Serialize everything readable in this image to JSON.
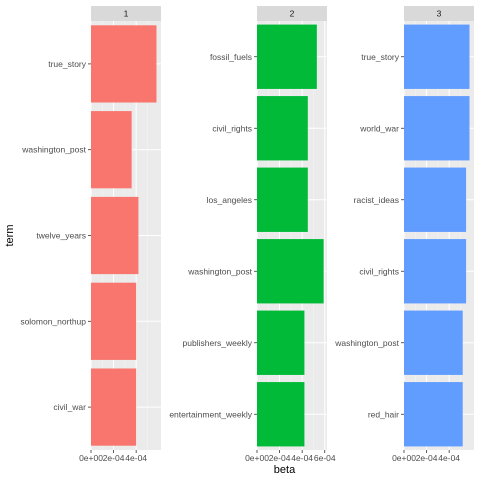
{
  "chart_data": {
    "type": "bar",
    "orientation": "horizontal",
    "xlabel": "beta",
    "ylabel": "term",
    "grid": true,
    "legend": "none",
    "facets": [
      {
        "label": "1",
        "color": "#F8766D",
        "xlim": [
          0,
          0.00062
        ],
        "x_ticks": [
          0,
          0.0002,
          0.0004
        ],
        "x_tick_labels": [
          "0e+00",
          "2e-04",
          "4e-04"
        ],
        "categories": [
          "true_story",
          "washington_post",
          "twelve_years",
          "solomon_northup",
          "civil_war"
        ],
        "values": [
          0.00058,
          0.00036,
          0.00042,
          0.0004,
          0.0004
        ]
      },
      {
        "label": "2",
        "color": "#00BA38",
        "xlim": [
          0,
          0.00062
        ],
        "x_ticks": [
          0,
          0.0002,
          0.0004,
          0.0006
        ],
        "x_tick_labels": [
          "0e+00",
          "2e-04",
          "4e-04",
          "6e-04"
        ],
        "categories": [
          "fossil_fuels",
          "civil_rights",
          "los_angeles",
          "washington_post",
          "publishers_weekly",
          "entertainment_weekly"
        ],
        "values": [
          0.00053,
          0.00045,
          0.00045,
          0.00059,
          0.00042,
          0.00042
        ]
      },
      {
        "label": "3",
        "color": "#619CFF",
        "xlim": [
          0,
          0.00062
        ],
        "x_ticks": [
          0,
          0.0002,
          0.0004
        ],
        "x_tick_labels": [
          "0e+00",
          "2e-04",
          "4e-04"
        ],
        "categories": [
          "true_story",
          "world_war",
          "racist_ideas",
          "civil_rights",
          "washington_post",
          "red_hair"
        ],
        "values": [
          0.00058,
          0.00058,
          0.00055,
          0.00055,
          0.00052,
          0.00052
        ]
      }
    ]
  }
}
